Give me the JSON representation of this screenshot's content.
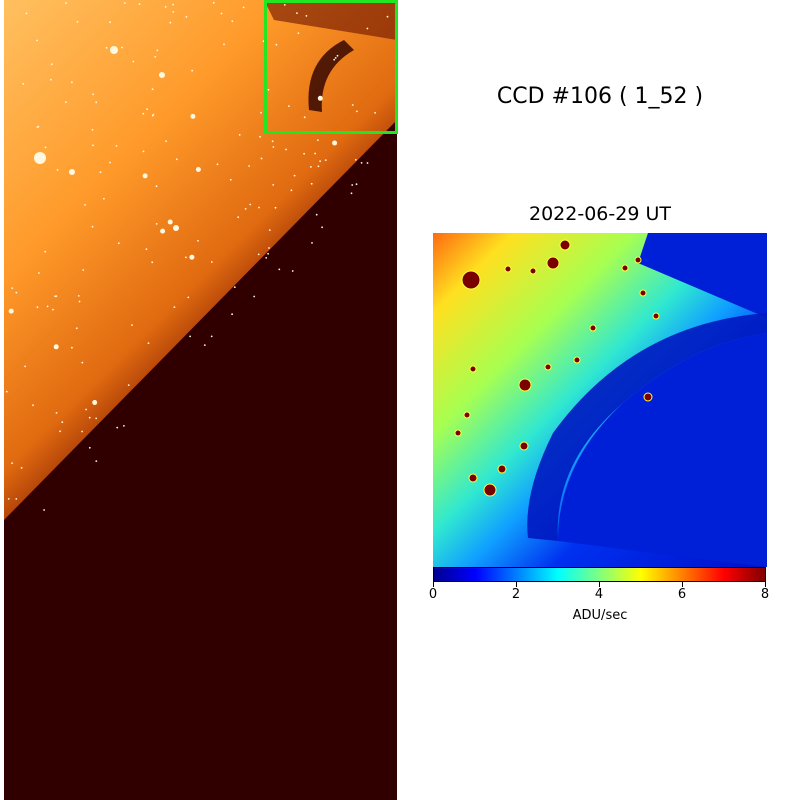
{
  "title": "CCD #106 ( 1_52 )",
  "date": "2022-06-29 UT",
  "colorbar": {
    "ticks": [
      "0",
      "2",
      "4",
      "6",
      "8"
    ],
    "unit": "ADU/sec",
    "range": [
      0,
      8
    ]
  },
  "colors": {
    "zoom_box": "#22e622",
    "background": "#ffffff"
  }
}
